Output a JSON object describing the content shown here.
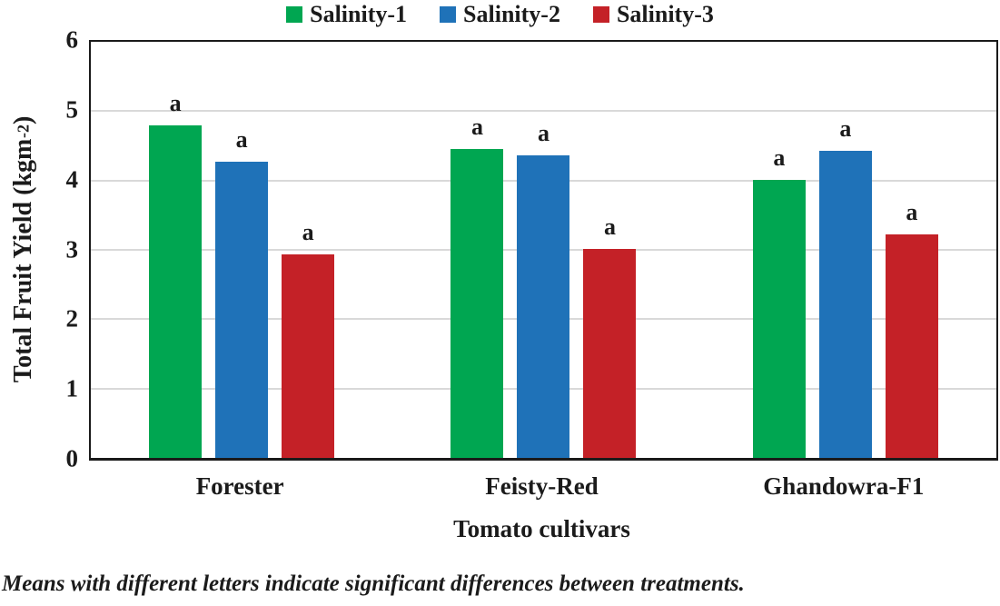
{
  "chart_data": {
    "type": "bar",
    "title": "",
    "categories": [
      "Forester",
      "Feisty-Red",
      "Ghandowra-F1"
    ],
    "series": [
      {
        "name": "Salinity-1",
        "color": "#00A651",
        "values": [
          4.8,
          4.45,
          4.01
        ]
      },
      {
        "name": "Salinity-2",
        "color": "#1F72B8",
        "values": [
          4.27,
          4.36,
          4.43
        ]
      },
      {
        "name": "Salinity-3",
        "color": "#C42127",
        "values": [
          2.94,
          3.01,
          3.22
        ]
      }
    ],
    "bar_letters": [
      [
        "a",
        "a",
        "a"
      ],
      [
        "a",
        "a",
        "a"
      ],
      [
        "a",
        "a",
        "a"
      ]
    ],
    "xlabel": "Tomato cultivars",
    "ylabel": "Total Fruit Yield (kgm-2)",
    "ylabel_parts": {
      "main": "Total Fruit Yield (kgm",
      "sup": "-2",
      "end": ")"
    },
    "ylim": [
      0,
      6
    ],
    "yticks": [
      0,
      1,
      2,
      3,
      4,
      5,
      6
    ],
    "grid": "horizontal-only",
    "legend_position": "top-center",
    "gridline_color": "#D9D9D9",
    "axis_color": "#1A1A1A",
    "text_color": "#1B1B1B"
  },
  "footnote": "Means with different letters indicate significant differences between treatments."
}
